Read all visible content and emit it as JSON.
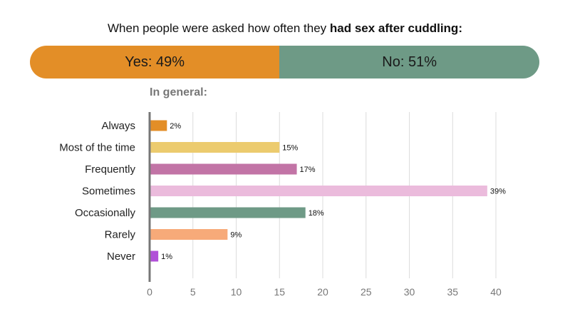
{
  "header": {
    "title_prefix": "When people were asked how often they ",
    "title_bold": "had sex after cuddling:"
  },
  "summary": {
    "yes_label": "Yes: 49%",
    "yes_value": 49,
    "yes_color": "#E38E27",
    "no_label": "No: 51%",
    "no_value": 51,
    "no_color": "#6E9A86"
  },
  "chart_data": {
    "type": "bar",
    "orientation": "horizontal",
    "title": "In general:",
    "categories": [
      "Always",
      "Most of the time",
      "Frequently",
      "Sometimes",
      "Occasionally",
      "Rarely",
      "Never"
    ],
    "values": [
      2,
      15,
      17,
      39,
      18,
      9,
      1
    ],
    "value_labels": [
      "2%",
      "15%",
      "17%",
      "39%",
      "18%",
      "9%",
      "1%"
    ],
    "colors": [
      "#E38E27",
      "#ECCB6E",
      "#C274A6",
      "#EBBBDC",
      "#6E9A86",
      "#F7AA79",
      "#B14FD8"
    ],
    "xlim": [
      0,
      40
    ],
    "xticks": [
      0,
      5,
      10,
      15,
      20,
      25,
      30,
      35,
      40
    ],
    "xtick_labels": [
      "0",
      "5",
      "10",
      "15",
      "20",
      "25",
      "30",
      "35",
      "40"
    ],
    "grid": true
  }
}
